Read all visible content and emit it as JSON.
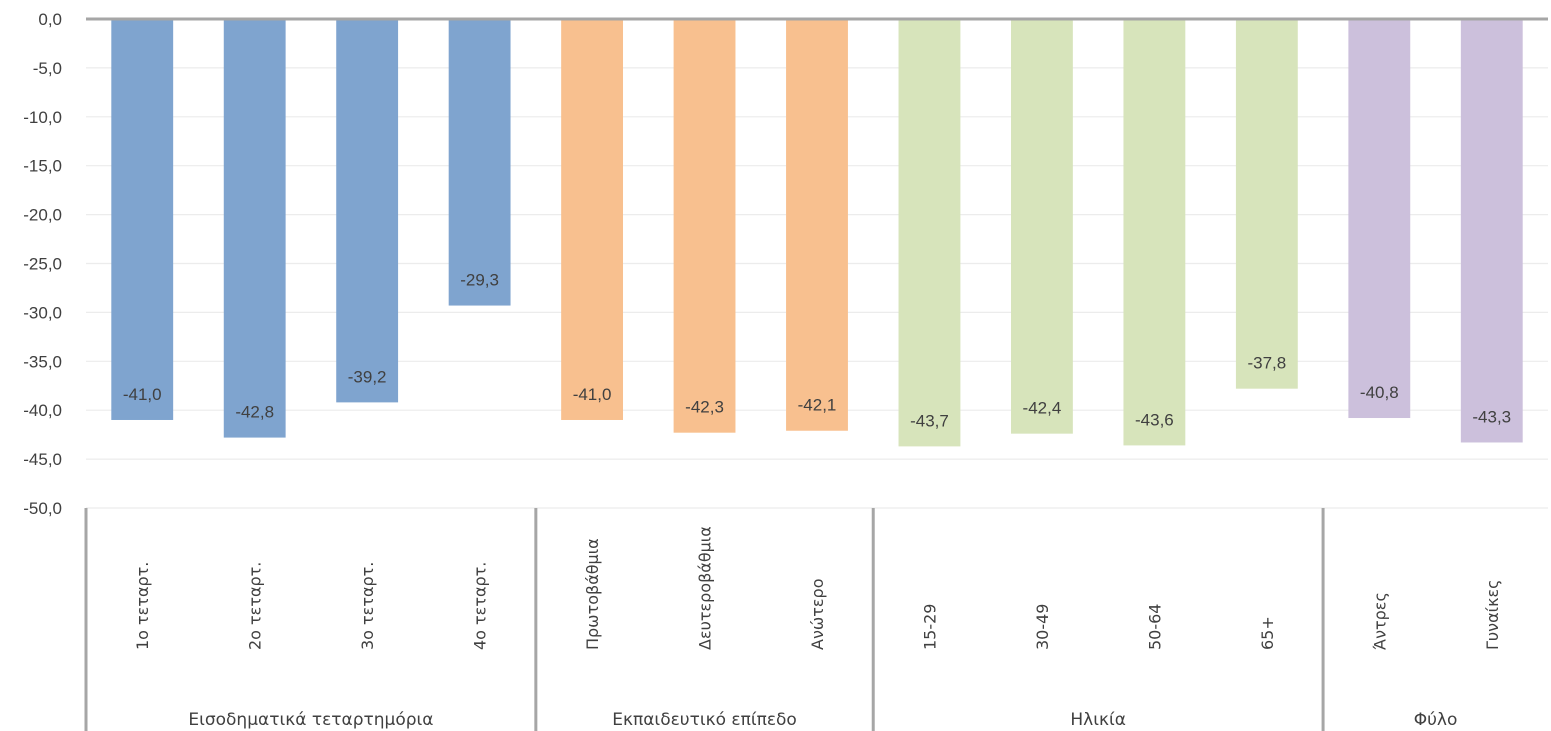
{
  "chart_data": {
    "type": "bar",
    "ylim": [
      -50,
      0
    ],
    "ytick_step": 5,
    "ytick_labels": [
      "0,0",
      "-5,0",
      "-10,0",
      "-15,0",
      "-20,0",
      "-25,0",
      "-30,0",
      "-35,0",
      "-40,0",
      "-45,0",
      "-50,0"
    ],
    "grid": true,
    "categories": [
      "1ο τεταρτ.",
      "2ο τεταρτ.",
      "3ο τεταρτ.",
      "4ο τεταρτ.",
      "Πρωτοβάθμια",
      "Δευτεροβάθμια",
      "Ανώτερο",
      "15-29",
      "30-49",
      "50-64",
      "65+",
      "Άντρες",
      "Γυναίκες"
    ],
    "values": [
      -41.0,
      -42.8,
      -39.2,
      -29.3,
      -41.0,
      -42.3,
      -42.1,
      -43.7,
      -42.4,
      -43.6,
      -37.8,
      -40.8,
      -43.3
    ],
    "value_labels": [
      "-41,0",
      "-42,8",
      "-39,2",
      "-29,3",
      "-41,0",
      "-42,3",
      "-42,1",
      "-43,7",
      "-42,4",
      "-43,6",
      "-37,8",
      "-40,8",
      "-43,3"
    ],
    "groups": [
      {
        "label": "Εισοδηματικά τεταρτημόρια",
        "count": 4,
        "color": "#7fa4cf"
      },
      {
        "label": "Εκπαιδευτικό επίπεδο",
        "count": 3,
        "color": "#f8c08f"
      },
      {
        "label": "Ηλικία",
        "count": 4,
        "color": "#d7e4bb"
      },
      {
        "label": "Φύλο",
        "count": 2,
        "color": "#ccc0dc"
      }
    ],
    "axis_color": "#a6a6a6",
    "grid_color": "#ececec",
    "text_color": "#404040"
  }
}
